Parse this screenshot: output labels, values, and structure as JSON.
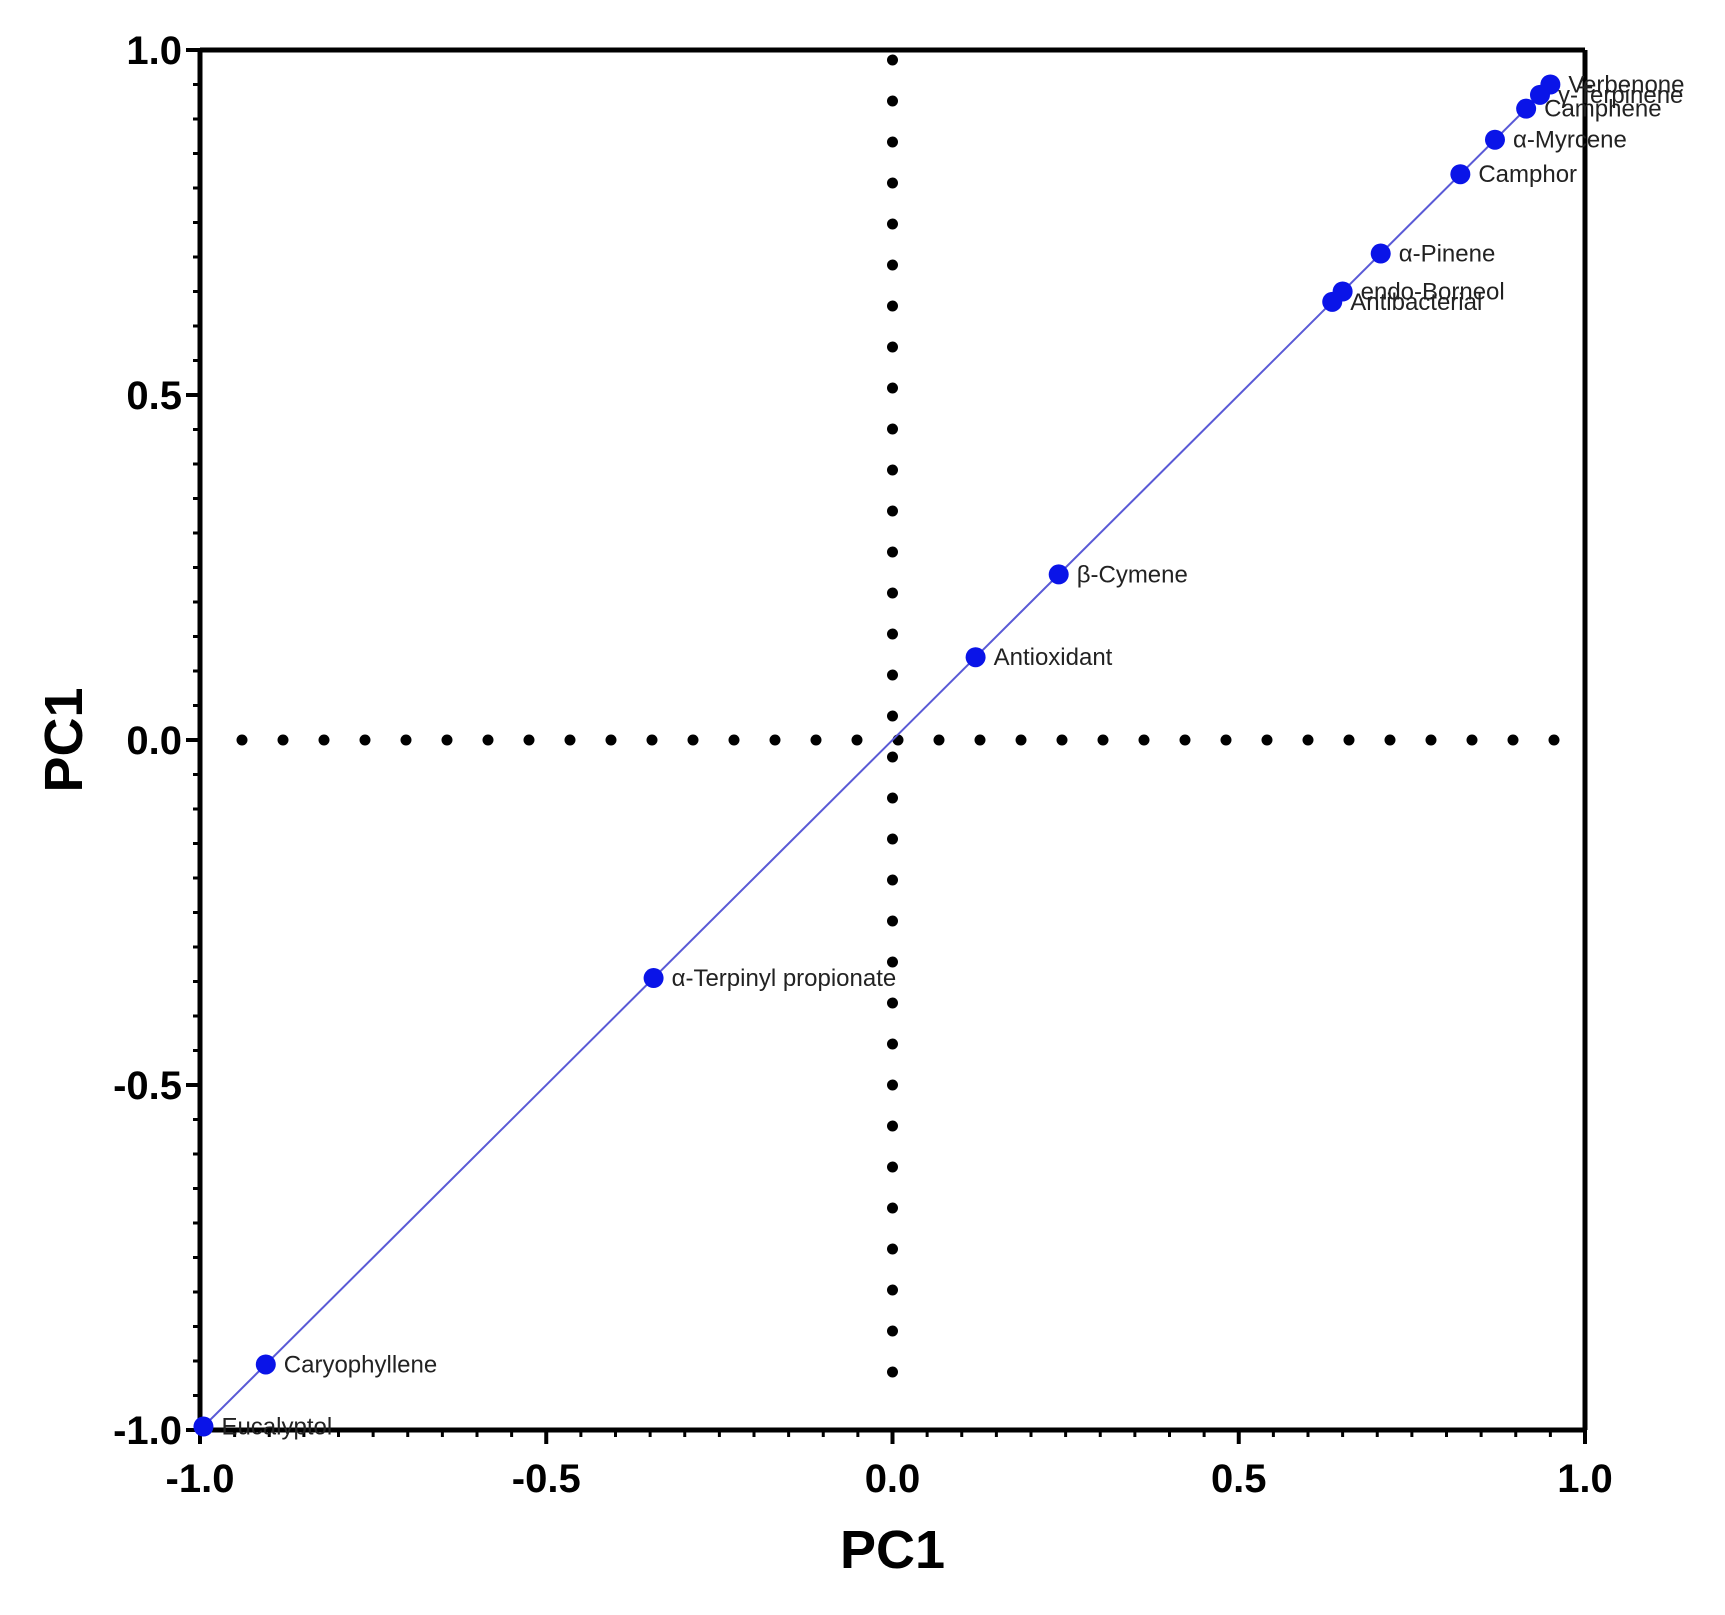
{
  "chart_data": {
    "type": "scatter",
    "xlabel": "PC1",
    "ylabel": "PC1",
    "xlim": [
      -1.0,
      1.0
    ],
    "ylim": [
      -1.0,
      1.0
    ],
    "xticks": [
      "-1.0",
      "-0.5",
      "0.0",
      "0.5",
      "1.0"
    ],
    "yticks": [
      "-1.0",
      "-0.5",
      "0.0",
      "0.5",
      "1.0"
    ],
    "xtick_values": [
      -1.0,
      -0.5,
      0.0,
      0.5,
      1.0
    ],
    "ytick_values": [
      -1.0,
      -0.5,
      0.0,
      0.5,
      1.0
    ],
    "reference_lines": [
      "x = 0 (dotted)",
      "y = 0 (dotted)"
    ],
    "fit_line": [
      [
        -1.0,
        -1.0
      ],
      [
        0.95,
        0.95
      ]
    ],
    "grid": false,
    "colors": {
      "points": "#0a14e8",
      "fit_line": "#5a5ad6",
      "axes": "#000000"
    },
    "points": [
      {
        "label": "Verbenone",
        "x": 0.95,
        "y": 0.95
      },
      {
        "label": "γ-Terpinene",
        "x": 0.935,
        "y": 0.935
      },
      {
        "label": "Camphene",
        "x": 0.915,
        "y": 0.915
      },
      {
        "label": "α-Myrcene",
        "x": 0.87,
        "y": 0.87
      },
      {
        "label": "Camphor",
        "x": 0.82,
        "y": 0.82
      },
      {
        "label": "α-Pinene",
        "x": 0.705,
        "y": 0.705
      },
      {
        "label": "endo-Borneol",
        "x": 0.65,
        "y": 0.65
      },
      {
        "label": "Antibacterial",
        "x": 0.635,
        "y": 0.635
      },
      {
        "label": "β-Cymene",
        "x": 0.24,
        "y": 0.24
      },
      {
        "label": "Antioxidant",
        "x": 0.12,
        "y": 0.12
      },
      {
        "label": "α-Terpinyl propionate",
        "x": -0.345,
        "y": -0.345
      },
      {
        "label": "Caryophyllene",
        "x": -0.905,
        "y": -0.905
      },
      {
        "label": "Eucalyptol",
        "x": -0.995,
        "y": -0.995
      }
    ]
  }
}
